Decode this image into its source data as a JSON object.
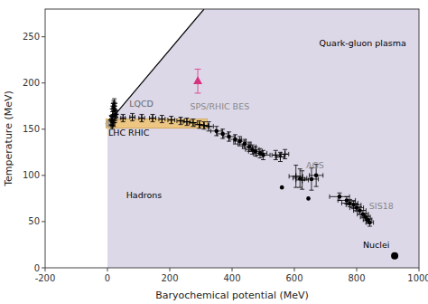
{
  "chart_data": {
    "type": "scatter",
    "xlabel": "Baryochemical potential (MeV)",
    "ylabel": "Temperature (MeV)",
    "xlim": [
      -200,
      1000
    ],
    "ylim": [
      0,
      280
    ],
    "xticks": [
      -200,
      0,
      200,
      400,
      600,
      800,
      1000
    ],
    "yticks": [
      0,
      50,
      100,
      150,
      200,
      250
    ],
    "series": [
      {
        "type": "polygon",
        "color": "#ddd8e8",
        "x": [
          0,
          1000,
          1000,
          310,
          0
        ],
        "y": [
          0,
          0,
          280,
          280,
          156
        ]
      },
      {
        "type": "line",
        "color": "#000000",
        "line_style": "solid",
        "x": [
          0,
          310
        ],
        "y": [
          156,
          280
        ]
      },
      {
        "type": "band",
        "color": "#f0c060",
        "x": [
          -5,
          320
        ],
        "y": 156,
        "width": 10
      },
      {
        "type": "scatter",
        "marker": "open-circle",
        "color": "#999999",
        "x": [
          5
        ],
        "y": [
          156
        ],
        "xerr": [
          4
        ],
        "yerr": [
          3
        ]
      },
      {
        "type": "scatter",
        "marker": "plus",
        "color": "#000000",
        "x": [
          12,
          16,
          18,
          20,
          22,
          24,
          26,
          25,
          20,
          15
        ],
        "y": [
          160,
          164,
          172,
          175,
          178,
          170,
          166,
          163,
          157,
          154
        ],
        "xerr": [
          4,
          4,
          4,
          4,
          4,
          5,
          5,
          4,
          4,
          4
        ],
        "yerr": [
          5,
          5,
          6,
          6,
          5,
          5,
          5,
          4,
          4,
          4
        ]
      },
      {
        "type": "scatter",
        "marker": "plus",
        "color": "#000000",
        "x": [
          50,
          80,
          110,
          145,
          175,
          205,
          235,
          255,
          275,
          295,
          310,
          325
        ],
        "y": [
          162,
          163,
          162,
          162,
          161,
          160,
          159,
          158,
          157,
          155,
          154,
          153
        ],
        "xerr": [
          7,
          8,
          9,
          10,
          10,
          11,
          12,
          12,
          13,
          14,
          14,
          15
        ],
        "yerr": [
          4,
          4,
          4,
          4,
          4,
          4,
          4,
          4,
          4,
          4,
          4,
          5
        ]
      },
      {
        "type": "scatter",
        "marker": "dot",
        "color": "#000000",
        "x": [
          350,
          370,
          390,
          410,
          425,
          440,
          455,
          465,
          475,
          490,
          500
        ],
        "y": [
          148,
          145,
          142,
          139,
          137,
          134,
          131,
          128,
          126,
          124,
          122
        ],
        "xerr": [
          18,
          18,
          19,
          20,
          20,
          21,
          22,
          22,
          22,
          22,
          22
        ],
        "yerr": [
          5,
          5,
          5,
          5,
          5,
          5,
          5,
          5,
          5,
          5,
          5
        ]
      },
      {
        "type": "scatter",
        "marker": "plus",
        "color": "#000000",
        "x": [
          540,
          555,
          570,
          605,
          625
        ],
        "y": [
          122,
          120,
          123,
          99,
          95
        ],
        "xerr": [
          12,
          12,
          12,
          22,
          20
        ],
        "yerr": [
          5,
          5,
          5,
          12,
          10
        ]
      },
      {
        "type": "scatter",
        "marker": "triangle",
        "color": "#000000",
        "x": [
          618
        ],
        "y": [
          97
        ],
        "xerr": [
          22
        ],
        "yerr": [
          10
        ]
      },
      {
        "type": "scatter",
        "marker": "dot",
        "color": "#000000",
        "x": [
          560,
          645,
          655,
          670
        ],
        "y": [
          87,
          75,
          96,
          100
        ],
        "xerr": [
          0,
          0,
          22,
          22
        ],
        "yerr": [
          0,
          0,
          12,
          12
        ]
      },
      {
        "type": "scatter",
        "marker": "dot",
        "color": "#000000",
        "x": [
          745,
          768,
          778,
          790,
          800,
          810,
          820,
          828,
          835,
          842
        ],
        "y": [
          77,
          73,
          70,
          68,
          65,
          62,
          58,
          55,
          52,
          49
        ],
        "xerr": [
          32,
          28,
          26,
          24,
          22,
          20,
          18,
          16,
          14,
          12
        ],
        "yerr": [
          4,
          4,
          4,
          4,
          4,
          4,
          4,
          4,
          4,
          4
        ]
      },
      {
        "type": "scatter",
        "marker": "big-dot",
        "color": "#000000",
        "x": [
          922
        ],
        "y": [
          13
        ]
      },
      {
        "type": "scatter",
        "marker": "triangle",
        "color": "#d63080",
        "x": [
          290
        ],
        "y": [
          202
        ],
        "yerr": [
          13
        ]
      }
    ],
    "annotations": [
      {
        "text": "LQCD",
        "x": 70,
        "y": 174,
        "color": "#666666"
      },
      {
        "text": "LHC RHIC",
        "x": 3,
        "y": 143,
        "color": "#000000"
      },
      {
        "text": "SPS/RHIC BES",
        "x": 265,
        "y": 171,
        "color": "#888888"
      },
      {
        "text": "AGS",
        "x": 638,
        "y": 108,
        "color": "#888888"
      },
      {
        "text": "SIS18",
        "x": 840,
        "y": 64,
        "color": "#888888"
      },
      {
        "text": "Nuclei",
        "x": 820,
        "y": 22,
        "color": "#000000"
      },
      {
        "text": "Hadrons",
        "x": 60,
        "y": 75,
        "color": "#000000"
      },
      {
        "text": "Quark-gluon plasma",
        "x": 680,
        "y": 240,
        "color": "#000000"
      }
    ]
  }
}
